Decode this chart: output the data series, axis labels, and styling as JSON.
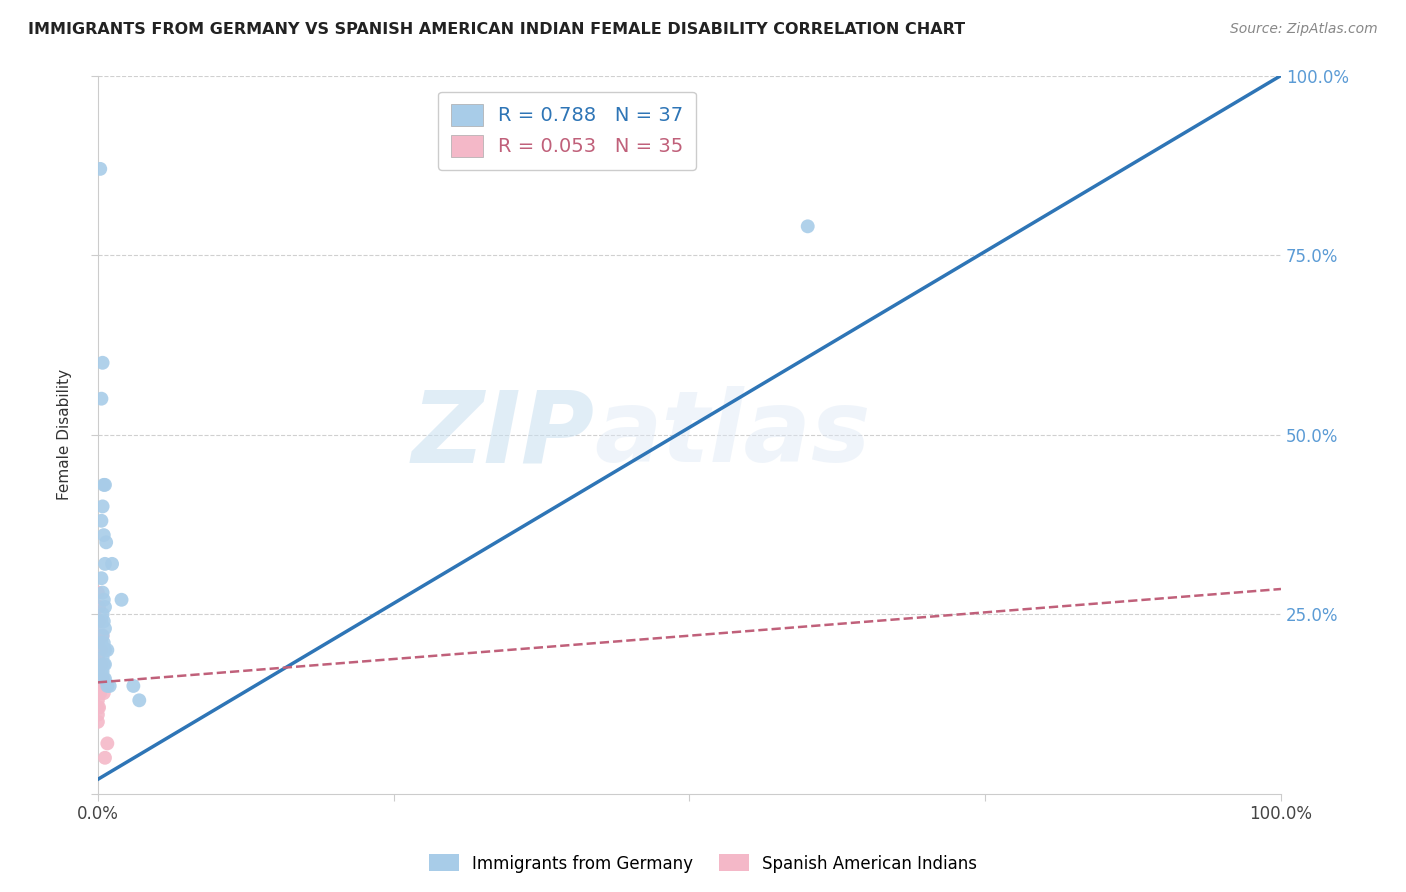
{
  "title": "IMMIGRANTS FROM GERMANY VS SPANISH AMERICAN INDIAN FEMALE DISABILITY CORRELATION CHART",
  "source": "Source: ZipAtlas.com",
  "ylabel": "Female Disability",
  "xlim": [
    0.0,
    1.0
  ],
  "ylim": [
    0.0,
    1.0
  ],
  "y_ticks": [
    0.0,
    0.25,
    0.5,
    0.75,
    1.0
  ],
  "y_tick_labels": [
    "",
    "25.0%",
    "50.0%",
    "75.0%",
    "100.0%"
  ],
  "x_ticks": [
    0.0,
    0.25,
    0.5,
    0.75,
    1.0
  ],
  "x_tick_labels": [
    "0.0%",
    "",
    "",
    "",
    "100.0%"
  ],
  "watermark_zip": "ZIP",
  "watermark_atlas": "atlas",
  "blue_R": "0.788",
  "blue_N": "37",
  "pink_R": "0.053",
  "pink_N": "35",
  "blue_color": "#a8cce8",
  "pink_color": "#f4b8c8",
  "blue_line_color": "#2e75b6",
  "pink_line_color": "#c0607a",
  "blue_label": "Immigrants from Germany",
  "pink_label": "Spanish American Indians",
  "blue_line": [
    [
      0.0,
      0.02
    ],
    [
      1.0,
      1.0
    ]
  ],
  "pink_line": [
    [
      0.0,
      0.155
    ],
    [
      1.0,
      0.285
    ]
  ],
  "blue_scatter": [
    [
      0.002,
      0.87
    ],
    [
      0.004,
      0.6
    ],
    [
      0.003,
      0.55
    ],
    [
      0.005,
      0.43
    ],
    [
      0.006,
      0.43
    ],
    [
      0.004,
      0.4
    ],
    [
      0.003,
      0.38
    ],
    [
      0.005,
      0.36
    ],
    [
      0.007,
      0.35
    ],
    [
      0.006,
      0.32
    ],
    [
      0.003,
      0.3
    ],
    [
      0.004,
      0.28
    ],
    [
      0.005,
      0.27
    ],
    [
      0.006,
      0.26
    ],
    [
      0.004,
      0.25
    ],
    [
      0.003,
      0.24
    ],
    [
      0.005,
      0.24
    ],
    [
      0.006,
      0.23
    ],
    [
      0.004,
      0.22
    ],
    [
      0.003,
      0.21
    ],
    [
      0.005,
      0.21
    ],
    [
      0.006,
      0.2
    ],
    [
      0.008,
      0.2
    ],
    [
      0.004,
      0.19
    ],
    [
      0.005,
      0.18
    ],
    [
      0.006,
      0.18
    ],
    [
      0.003,
      0.17
    ],
    [
      0.004,
      0.17
    ],
    [
      0.005,
      0.16
    ],
    [
      0.006,
      0.16
    ],
    [
      0.008,
      0.15
    ],
    [
      0.01,
      0.15
    ],
    [
      0.012,
      0.32
    ],
    [
      0.02,
      0.27
    ],
    [
      0.03,
      0.15
    ],
    [
      0.035,
      0.13
    ],
    [
      0.6,
      0.79
    ]
  ],
  "pink_scatter": [
    [
      0.0,
      0.28
    ],
    [
      0.0,
      0.26
    ],
    [
      0.0,
      0.24
    ],
    [
      0.0,
      0.22
    ],
    [
      0.0,
      0.21
    ],
    [
      0.0,
      0.2
    ],
    [
      0.0,
      0.19
    ],
    [
      0.0,
      0.18
    ],
    [
      0.0,
      0.17
    ],
    [
      0.0,
      0.16
    ],
    [
      0.0,
      0.15
    ],
    [
      0.0,
      0.14
    ],
    [
      0.0,
      0.13
    ],
    [
      0.0,
      0.12
    ],
    [
      0.0,
      0.11
    ],
    [
      0.0,
      0.1
    ],
    [
      0.001,
      0.26
    ],
    [
      0.001,
      0.24
    ],
    [
      0.001,
      0.22
    ],
    [
      0.001,
      0.2
    ],
    [
      0.001,
      0.18
    ],
    [
      0.001,
      0.16
    ],
    [
      0.001,
      0.14
    ],
    [
      0.001,
      0.12
    ],
    [
      0.002,
      0.2
    ],
    [
      0.002,
      0.18
    ],
    [
      0.002,
      0.16
    ],
    [
      0.002,
      0.14
    ],
    [
      0.003,
      0.2
    ],
    [
      0.003,
      0.18
    ],
    [
      0.004,
      0.16
    ],
    [
      0.004,
      0.22
    ],
    [
      0.005,
      0.14
    ],
    [
      0.006,
      0.05
    ],
    [
      0.008,
      0.07
    ]
  ],
  "background_color": "#ffffff",
  "grid_color": "#d0d0d0",
  "right_axis_color": "#5b9bd5",
  "legend_box_color": "#ffffff",
  "legend_edge_color": "#cccccc"
}
